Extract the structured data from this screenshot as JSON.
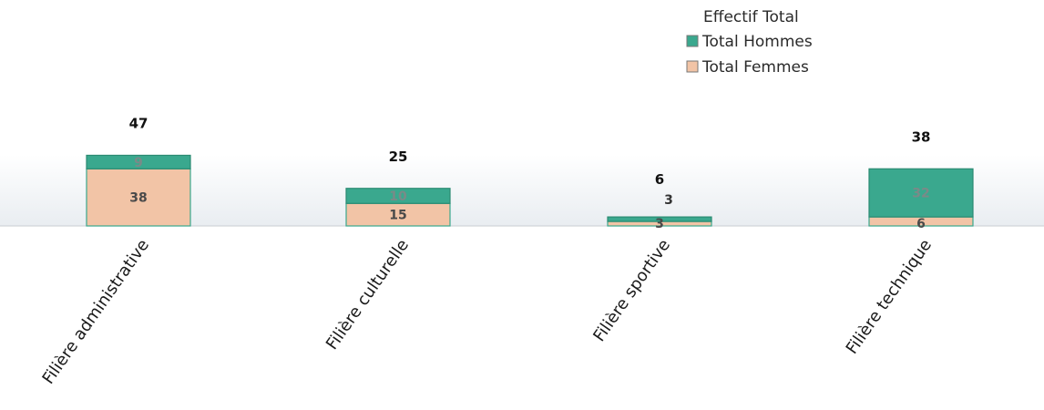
{
  "chart_data": {
    "type": "bar",
    "stacked": true,
    "legend_title": "Effectif Total",
    "legend_position": "top-right",
    "categories": [
      "Filière administrative",
      "Filière culturelle",
      "Filière sportive",
      "Filière technique"
    ],
    "series": [
      {
        "name": "Total Femmes",
        "values": [
          38,
          15,
          3,
          6
        ],
        "color": "#f2c4a6"
      },
      {
        "name": "Total Hommes",
        "values": [
          9,
          10,
          3,
          32
        ],
        "color": "#3aa88e"
      }
    ],
    "totals": [
      47,
      25,
      6,
      38
    ],
    "grid": false
  }
}
